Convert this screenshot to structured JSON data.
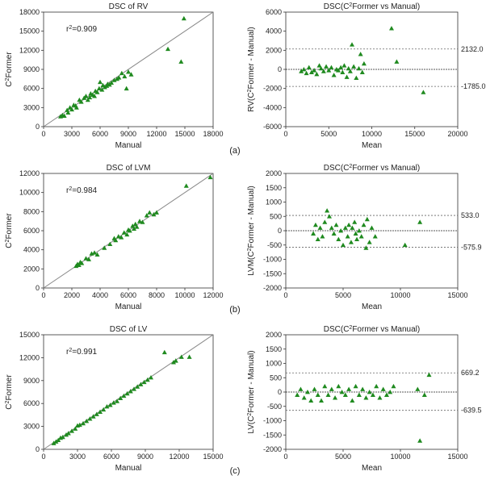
{
  "panel_labels": [
    "(a)",
    "(b)",
    "(c)"
  ],
  "colors": {
    "marker": "#1f8a1f",
    "axis": "#333333",
    "identity": "#888888",
    "zero": "#222222",
    "loa": "#666666"
  },
  "chart_data": [
    {
      "type": "scatter",
      "title": "DSC of RV",
      "xlabel": "Manual",
      "ylabel": "C²Former",
      "xlim": [
        0,
        18000
      ],
      "ylim": [
        0,
        18000
      ],
      "xticks": [
        0,
        3000,
        6000,
        9000,
        12000,
        15000,
        18000
      ],
      "yticks": [
        0,
        3000,
        6000,
        9000,
        12000,
        15000,
        18000
      ],
      "r2_text": "r²=0.909",
      "identity_line": true,
      "points": [
        [
          1800,
          1600
        ],
        [
          2000,
          1800
        ],
        [
          2200,
          1700
        ],
        [
          2500,
          2600
        ],
        [
          2600,
          2200
        ],
        [
          2800,
          3000
        ],
        [
          3000,
          2700
        ],
        [
          3200,
          3400
        ],
        [
          3400,
          3300
        ],
        [
          3500,
          3000
        ],
        [
          3800,
          4200
        ],
        [
          4000,
          3900
        ],
        [
          4300,
          4500
        ],
        [
          4500,
          4800
        ],
        [
          4700,
          4200
        ],
        [
          4900,
          4600
        ],
        [
          5000,
          5200
        ],
        [
          5200,
          5000
        ],
        [
          5400,
          4800
        ],
        [
          5500,
          5600
        ],
        [
          5700,
          5400
        ],
        [
          5900,
          6000
        ],
        [
          6000,
          7000
        ],
        [
          6200,
          5800
        ],
        [
          6300,
          6500
        ],
        [
          6500,
          6200
        ],
        [
          6700,
          6400
        ],
        [
          6800,
          6700
        ],
        [
          7000,
          6600
        ],
        [
          7200,
          6900
        ],
        [
          7500,
          7300
        ],
        [
          7800,
          7500
        ],
        [
          8000,
          7700
        ],
        [
          8300,
          8400
        ],
        [
          8600,
          7900
        ],
        [
          8800,
          6000
        ],
        [
          9000,
          8600
        ],
        [
          9300,
          8200
        ],
        [
          13200,
          12200
        ],
        [
          14600,
          10200
        ],
        [
          14900,
          17000
        ]
      ]
    },
    {
      "type": "scatter",
      "title": "DSC(C²Former vs Manual)",
      "xlabel": "Mean",
      "ylabel": "RV(C²Former - Manual)",
      "xlim": [
        0,
        20000
      ],
      "ylim": [
        -6000,
        6000
      ],
      "xticks": [
        0,
        5000,
        10000,
        15000,
        20000
      ],
      "yticks": [
        -6000,
        -4000,
        -2000,
        0,
        2000,
        4000,
        6000
      ],
      "reference_lines": [
        {
          "y": 2132.0,
          "label": "2132.0"
        },
        {
          "y": -1785.0,
          "label": "-1785.0"
        }
      ],
      "zero_line": true,
      "points": [
        [
          1800,
          -200
        ],
        [
          2100,
          0
        ],
        [
          2400,
          -400
        ],
        [
          2700,
          200
        ],
        [
          3000,
          -300
        ],
        [
          3300,
          -100
        ],
        [
          3600,
          -500
        ],
        [
          3900,
          400
        ],
        [
          4100,
          100
        ],
        [
          4400,
          -200
        ],
        [
          4700,
          300
        ],
        [
          5000,
          -100
        ],
        [
          5300,
          200
        ],
        [
          5600,
          -600
        ],
        [
          5900,
          0
        ],
        [
          6100,
          -100
        ],
        [
          6400,
          200
        ],
        [
          6600,
          -300
        ],
        [
          6800,
          400
        ],
        [
          7100,
          -800
        ],
        [
          7300,
          100
        ],
        [
          7500,
          -200
        ],
        [
          7700,
          2600
        ],
        [
          7900,
          300
        ],
        [
          8200,
          -900
        ],
        [
          8500,
          100
        ],
        [
          8700,
          1600
        ],
        [
          8900,
          -300
        ],
        [
          9100,
          600
        ],
        [
          12300,
          4300
        ],
        [
          12900,
          800
        ],
        [
          16000,
          -2400
        ]
      ]
    },
    {
      "type": "scatter",
      "title": "DSC of LVM",
      "xlabel": "Manual",
      "ylabel": "C²Former",
      "xlim": [
        0,
        12000
      ],
      "ylim": [
        0,
        12000
      ],
      "xticks": [
        0,
        2000,
        4000,
        6000,
        8000,
        10000,
        12000
      ],
      "yticks": [
        0,
        2000,
        4000,
        6000,
        8000,
        10000,
        12000
      ],
      "r2_text": "r²=0.984",
      "identity_line": true,
      "points": [
        [
          2300,
          2300
        ],
        [
          2400,
          2500
        ],
        [
          2500,
          2400
        ],
        [
          2600,
          2700
        ],
        [
          2700,
          2600
        ],
        [
          3000,
          3100
        ],
        [
          3200,
          3000
        ],
        [
          3400,
          3600
        ],
        [
          3600,
          3700
        ],
        [
          3800,
          3500
        ],
        [
          4300,
          4200
        ],
        [
          4700,
          4600
        ],
        [
          5000,
          5200
        ],
        [
          5100,
          5000
        ],
        [
          5300,
          5400
        ],
        [
          5500,
          5300
        ],
        [
          5700,
          5800
        ],
        [
          5900,
          5600
        ],
        [
          6000,
          6100
        ],
        [
          6100,
          6000
        ],
        [
          6300,
          6500
        ],
        [
          6400,
          6200
        ],
        [
          6500,
          6700
        ],
        [
          6600,
          6400
        ],
        [
          6800,
          7000
        ],
        [
          7000,
          6900
        ],
        [
          7300,
          7600
        ],
        [
          7500,
          7900
        ],
        [
          7800,
          7700
        ],
        [
          8000,
          7900
        ],
        [
          10100,
          10700
        ],
        [
          11800,
          11600
        ]
      ]
    },
    {
      "type": "scatter",
      "title": "DSC(C²Former vs Manual)",
      "xlabel": "Mean",
      "ylabel": "LVM(C²Former - Manual)",
      "xlim": [
        0,
        15000
      ],
      "ylim": [
        -2000,
        2000
      ],
      "xticks": [
        0,
        5000,
        10000,
        15000
      ],
      "yticks": [
        -2000,
        -1500,
        -1000,
        -500,
        0,
        500,
        1000,
        1500,
        2000
      ],
      "reference_lines": [
        {
          "y": 533.0,
          "label": "533.0"
        },
        {
          "y": -575.9,
          "label": "-575.9"
        }
      ],
      "zero_line": true,
      "points": [
        [
          2400,
          -100
        ],
        [
          2600,
          200
        ],
        [
          2800,
          -300
        ],
        [
          3000,
          100
        ],
        [
          3200,
          -200
        ],
        [
          3400,
          300
        ],
        [
          3600,
          700
        ],
        [
          3800,
          500
        ],
        [
          4000,
          100
        ],
        [
          4200,
          -100
        ],
        [
          4400,
          200
        ],
        [
          4600,
          -300
        ],
        [
          4800,
          0
        ],
        [
          5000,
          -500
        ],
        [
          5200,
          100
        ],
        [
          5400,
          -200
        ],
        [
          5500,
          200
        ],
        [
          5700,
          -400
        ],
        [
          5800,
          100
        ],
        [
          6000,
          300
        ],
        [
          6100,
          -100
        ],
        [
          6200,
          -300
        ],
        [
          6400,
          0
        ],
        [
          6600,
          -200
        ],
        [
          6800,
          200
        ],
        [
          7000,
          -600
        ],
        [
          7100,
          400
        ],
        [
          7300,
          -400
        ],
        [
          7500,
          100
        ],
        [
          7800,
          -200
        ],
        [
          10400,
          -500
        ],
        [
          11700,
          300
        ]
      ]
    },
    {
      "type": "scatter",
      "title": "DSC of LV",
      "xlabel": "Manual",
      "ylabel": "C²Former",
      "xlim": [
        0,
        15000
      ],
      "ylim": [
        0,
        15000
      ],
      "xticks": [
        0,
        3000,
        6000,
        9000,
        12000,
        15000
      ],
      "yticks": [
        0,
        3000,
        6000,
        9000,
        12000,
        15000
      ],
      "r2_text": "r²=0.991",
      "identity_line": true,
      "points": [
        [
          900,
          800
        ],
        [
          1100,
          1000
        ],
        [
          1300,
          1200
        ],
        [
          1500,
          1500
        ],
        [
          1700,
          1600
        ],
        [
          2000,
          1900
        ],
        [
          2200,
          2100
        ],
        [
          2500,
          2400
        ],
        [
          2800,
          2700
        ],
        [
          3000,
          3100
        ],
        [
          3200,
          3200
        ],
        [
          3500,
          3400
        ],
        [
          3800,
          3700
        ],
        [
          4100,
          4000
        ],
        [
          4400,
          4300
        ],
        [
          4700,
          4600
        ],
        [
          5000,
          4900
        ],
        [
          5300,
          5200
        ],
        [
          5600,
          5600
        ],
        [
          5900,
          5800
        ],
        [
          6200,
          6100
        ],
        [
          6500,
          6300
        ],
        [
          6800,
          6700
        ],
        [
          7100,
          7000
        ],
        [
          7400,
          7300
        ],
        [
          7700,
          7600
        ],
        [
          8000,
          7900
        ],
        [
          8300,
          8200
        ],
        [
          8600,
          8500
        ],
        [
          8900,
          8800
        ],
        [
          9200,
          9100
        ],
        [
          9500,
          9400
        ],
        [
          10700,
          12700
        ],
        [
          11500,
          11400
        ],
        [
          11700,
          11600
        ],
        [
          12200,
          12100
        ],
        [
          12900,
          12100
        ]
      ]
    },
    {
      "type": "scatter",
      "title": "DSC(C²Former vs Manual)",
      "xlabel": "Mean",
      "ylabel": "LV(C²Former - Manual)",
      "xlim": [
        0,
        15000
      ],
      "ylim": [
        -2000,
        2000
      ],
      "xticks": [
        0,
        5000,
        10000,
        15000
      ],
      "yticks": [
        -2000,
        -1500,
        -1000,
        -500,
        0,
        500,
        1000,
        1500,
        2000
      ],
      "reference_lines": [
        {
          "y": 669.2,
          "label": "669.2"
        },
        {
          "y": -639.5,
          "label": "-639.5"
        }
      ],
      "zero_line": true,
      "points": [
        [
          1000,
          -100
        ],
        [
          1300,
          100
        ],
        [
          1600,
          -200
        ],
        [
          1900,
          0
        ],
        [
          2200,
          -300
        ],
        [
          2500,
          100
        ],
        [
          2800,
          -100
        ],
        [
          3100,
          -300
        ],
        [
          3400,
          200
        ],
        [
          3700,
          -100
        ],
        [
          4000,
          100
        ],
        [
          4300,
          -200
        ],
        [
          4600,
          200
        ],
        [
          4900,
          0
        ],
        [
          5200,
          -100
        ],
        [
          5500,
          100
        ],
        [
          5800,
          -300
        ],
        [
          6100,
          200
        ],
        [
          6400,
          -100
        ],
        [
          6700,
          100
        ],
        [
          7000,
          -200
        ],
        [
          7300,
          0
        ],
        [
          7600,
          -100
        ],
        [
          7900,
          200
        ],
        [
          8200,
          -200
        ],
        [
          8500,
          100
        ],
        [
          8800,
          -100
        ],
        [
          9100,
          0
        ],
        [
          9400,
          200
        ],
        [
          11500,
          100
        ],
        [
          11700,
          -1700
        ],
        [
          12100,
          -100
        ],
        [
          12500,
          600
        ]
      ]
    }
  ]
}
